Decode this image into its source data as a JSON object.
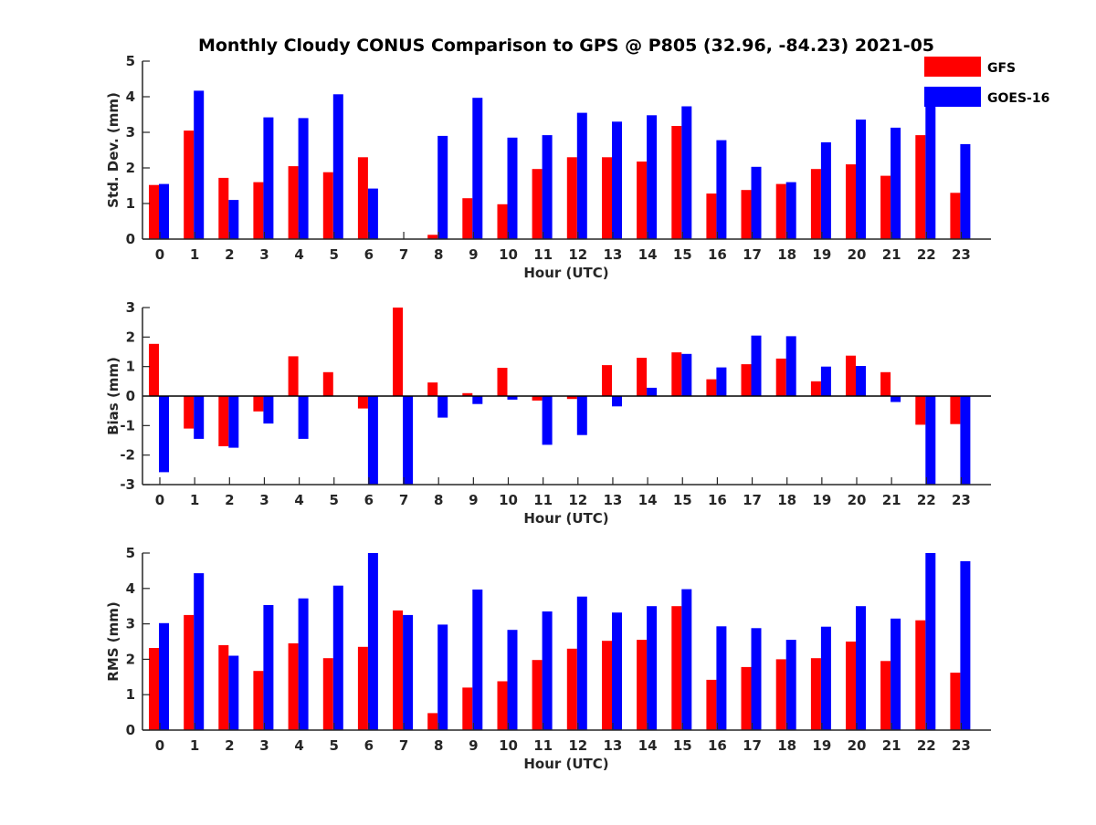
{
  "title": "Monthly Cloudy CONUS Comparison to GPS @ P805 (32.96, -84.23) 2021-05",
  "legend": [
    {
      "name": "GFS",
      "color": "#ff0000"
    },
    {
      "name": "GOES-16",
      "color": "#0000ff"
    }
  ],
  "legend_placement": "top-right",
  "chart_data": [
    {
      "type": "bar",
      "xlabel": "Hour (UTC)",
      "ylabel": "Std. Dev. (mm)",
      "ylim": [
        0,
        5
      ],
      "yticks": [
        0,
        1,
        2,
        3,
        4,
        5
      ],
      "categories": [
        "0",
        "1",
        "2",
        "3",
        "4",
        "5",
        "6",
        "7",
        "8",
        "9",
        "10",
        "11",
        "12",
        "13",
        "14",
        "15",
        "16",
        "17",
        "18",
        "19",
        "20",
        "21",
        "22",
        "23"
      ],
      "series": [
        {
          "name": "GFS",
          "color": "#ff0000",
          "values": [
            1.52,
            3.05,
            1.72,
            1.6,
            2.05,
            1.88,
            2.3,
            0.0,
            0.12,
            1.15,
            0.98,
            1.97,
            2.3,
            2.3,
            2.18,
            3.18,
            1.28,
            1.38,
            1.55,
            1.97,
            2.1,
            1.78,
            2.92,
            1.3
          ]
        },
        {
          "name": "GOES-16",
          "color": "#0000ff",
          "values": [
            1.55,
            4.17,
            1.1,
            3.42,
            3.4,
            4.07,
            1.42,
            0.0,
            2.9,
            3.97,
            2.85,
            2.92,
            3.55,
            3.3,
            3.48,
            3.73,
            2.78,
            2.03,
            1.6,
            2.72,
            3.36,
            3.13,
            4.15,
            2.67
          ]
        }
      ]
    },
    {
      "type": "bar",
      "xlabel": "Hour (UTC)",
      "ylabel": "Bias (mm)",
      "ylim": [
        -3,
        3
      ],
      "yticks": [
        -3,
        -2,
        -1,
        0,
        1,
        2,
        3
      ],
      "categories": [
        "0",
        "1",
        "2",
        "3",
        "4",
        "5",
        "6",
        "7",
        "8",
        "9",
        "10",
        "11",
        "12",
        "13",
        "14",
        "15",
        "16",
        "17",
        "18",
        "19",
        "20",
        "21",
        "22",
        "23"
      ],
      "series": [
        {
          "name": "GFS",
          "color": "#ff0000",
          "values": [
            1.77,
            -1.1,
            -1.7,
            -0.52,
            1.35,
            0.81,
            -0.42,
            3.0,
            0.46,
            0.1,
            0.96,
            -0.15,
            -0.1,
            1.05,
            1.3,
            1.48,
            0.57,
            1.08,
            1.27,
            0.5,
            1.37,
            0.81,
            -0.97,
            -0.95
          ]
        },
        {
          "name": "GOES-16",
          "color": "#0000ff",
          "values": [
            -2.58,
            -1.45,
            -1.75,
            -0.93,
            -1.45,
            0.0,
            -3.0,
            -3.0,
            -0.73,
            -0.27,
            -0.12,
            -1.65,
            -1.32,
            -0.35,
            0.28,
            1.43,
            0.97,
            2.05,
            2.03,
            1.0,
            1.02,
            -0.2,
            -3.0,
            -3.0
          ]
        }
      ]
    },
    {
      "type": "bar",
      "xlabel": "Hour (UTC)",
      "ylabel": "RMS (mm)",
      "ylim": [
        0,
        5
      ],
      "yticks": [
        0,
        1,
        2,
        3,
        4,
        5
      ],
      "categories": [
        "0",
        "1",
        "2",
        "3",
        "4",
        "5",
        "6",
        "7",
        "8",
        "9",
        "10",
        "11",
        "12",
        "13",
        "14",
        "15",
        "16",
        "17",
        "18",
        "19",
        "20",
        "21",
        "22",
        "23"
      ],
      "series": [
        {
          "name": "GFS",
          "color": "#ff0000",
          "values": [
            2.32,
            3.25,
            2.4,
            1.67,
            2.45,
            2.03,
            2.35,
            3.38,
            0.48,
            1.2,
            1.38,
            1.98,
            2.3,
            2.52,
            2.55,
            3.5,
            1.42,
            1.78,
            2.0,
            2.03,
            2.5,
            1.95,
            3.1,
            1.62
          ]
        },
        {
          "name": "GOES-16",
          "color": "#0000ff",
          "values": [
            3.02,
            4.43,
            2.1,
            3.53,
            3.72,
            4.08,
            5.0,
            3.25,
            2.98,
            3.97,
            2.83,
            3.35,
            3.77,
            3.32,
            3.5,
            3.98,
            2.93,
            2.88,
            2.55,
            2.92,
            3.5,
            3.15,
            5.0,
            4.77
          ]
        }
      ]
    }
  ]
}
